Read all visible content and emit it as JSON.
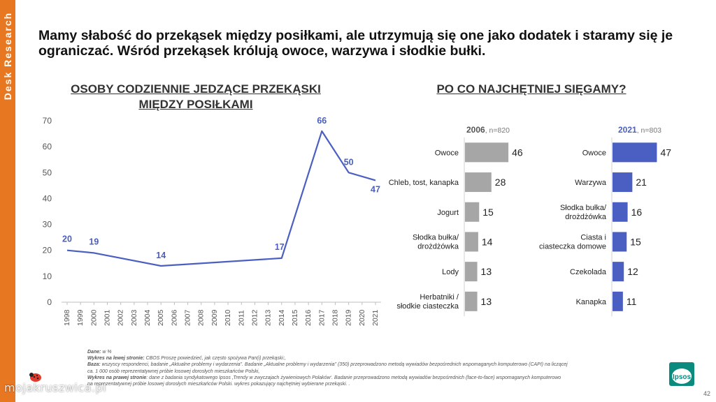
{
  "sidebar": {
    "label": "Desk Research",
    "color": "#E87722"
  },
  "headline": "Mamy słabość do przekąsek między posiłkami, ale utrzymują się one jako dodatek i staramy się je ograniczać. Wśród przekąsek królują owoce, warzywa i słodkie bułki.",
  "line_section": {
    "title": "OSOBY CODZIENNIE JEDZĄCE PRZEKĄSKI MIĘDZY POSIŁKAMI"
  },
  "bar_section": {
    "title": "PO CO NAJCHĘTNIEJ SIĘGAMY?"
  },
  "chart_data": [
    {
      "type": "line",
      "title": "OSOBY CODZIENNIE JEDZĄCE PRZEKĄSKI MIĘDZY POSIŁKAMI",
      "x": [
        "1998",
        "1999",
        "2000",
        "2001",
        "2002",
        "2003",
        "2004",
        "2005",
        "2006",
        "2007",
        "2008",
        "2009",
        "2010",
        "2011",
        "2012",
        "2013",
        "2014",
        "2015",
        "2016",
        "2017",
        "2018",
        "2019",
        "2020",
        "2021"
      ],
      "ylim": [
        0,
        70
      ],
      "yticks": [
        0,
        10,
        20,
        30,
        40,
        50,
        60,
        70
      ],
      "grid": false,
      "series_color": "#4A5FC1",
      "series": [
        {
          "points": [
            {
              "x": "1998",
              "y": 20
            },
            {
              "x": "2000",
              "y": 19
            },
            {
              "x": "2005",
              "y": 14
            },
            {
              "x": "2014",
              "y": 17
            },
            {
              "x": "2017",
              "y": 66
            },
            {
              "x": "2019",
              "y": 50
            },
            {
              "x": "2021",
              "y": 47
            }
          ]
        }
      ]
    },
    {
      "type": "bar",
      "orientation": "horizontal",
      "panel_year": "2006",
      "panel_n": ", n=820",
      "color": "#A6A6A6",
      "categories": [
        "Owoce",
        "Chleb, tost, kanapka",
        "Jogurt",
        "Słodka bułka/ drożdżówka",
        "Lody",
        "Herbatniki / słodkie ciasteczka"
      ],
      "values": [
        46,
        28,
        15,
        14,
        13,
        13
      ]
    },
    {
      "type": "bar",
      "orientation": "horizontal",
      "panel_year": "2021",
      "panel_n": ", n=803",
      "color": "#4A5FC1",
      "categories": [
        "Owoce",
        "Warzywa",
        "Słodka bułka/ drożdżówka",
        "Ciasta i ciasteczka domowe",
        "Czekolada",
        "Kanapka"
      ],
      "values": [
        47,
        21,
        16,
        15,
        12,
        11
      ]
    }
  ],
  "notes": {
    "l1_label": "Dane:",
    "l1_text": " w %",
    "l2_label": "Wykres na lewej stronie:",
    "l2_text": " CBOS Proszę powiedzieć, jak często spożywa Pan(i) przekąski:,",
    "l3_label": "Baza:",
    "l3_text": " wszyscy respondenci, badanie „Aktualne problemy i wydarzenia”. Badanie „Aktualne problemy i wydarzenia” (350) przeprowadzono metodą wywiadów bezpośrednich wspomaganych komputerowo (CAPI) na liczącej",
    "l4_text": "ca. 1 000 osób reprezentatywnej próbie losowej dorosłych mieszkańców Polski,",
    "l5_label": "Wykres na prawej stronie",
    "l5_text": ": dane z badania syndykatowego Ipsos ‚Trendy w zwyczajach żywieniowych Polaków‘. Badanie przeprowadzono metodą wywiadów bezpośrednich (face-to-face) wspomaganych komputerowo",
    "l6_text": "na reprezentatywnej próbie losowej dorosłych mieszkańców Polski. wykres pokazujący najchętniej wybierane przekąski. ."
  },
  "logo": {
    "text": "Ipsos",
    "color": "#0B8A7E"
  },
  "page_number": "42",
  "watermark": "mojakruszwica.pl"
}
